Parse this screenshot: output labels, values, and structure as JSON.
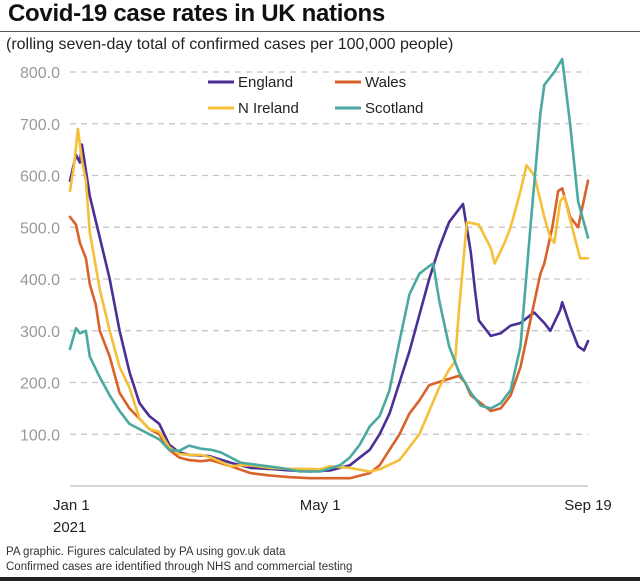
{
  "chart_data": {
    "type": "line",
    "title": "Covid-19 case rates in UK nations",
    "subtitle": "(rolling seven-day total of confirmed cases per 100,000 people)",
    "xlabel": "",
    "ylabel": "",
    "x_unit": "days since Jan 1 2021",
    "xlim": [
      0,
      261
    ],
    "ylim": [
      0,
      820
    ],
    "grid": true,
    "legend_position": "top-center",
    "y_ticks": [
      100,
      200,
      300,
      400,
      500,
      600,
      700,
      800
    ],
    "y_tick_labels": [
      "100.0",
      "200.0",
      "300.0",
      "400.0",
      "500.0",
      "600.0",
      "700.0",
      "800.0"
    ],
    "x_ticks": [
      0,
      120,
      261
    ],
    "x_tick_labels": [
      [
        "Jan 1",
        "2021"
      ],
      [
        "May 1"
      ],
      [
        "Sep 19"
      ]
    ],
    "series": [
      {
        "name": "England",
        "color": "#4b2e96",
        "points": [
          [
            0,
            590
          ],
          [
            3,
            640
          ],
          [
            5,
            625
          ],
          [
            6,
            660
          ],
          [
            10,
            560
          ],
          [
            15,
            480
          ],
          [
            20,
            400
          ],
          [
            25,
            300
          ],
          [
            30,
            220
          ],
          [
            35,
            160
          ],
          [
            40,
            135
          ],
          [
            45,
            120
          ],
          [
            50,
            80
          ],
          [
            55,
            65
          ],
          [
            60,
            60
          ],
          [
            70,
            58
          ],
          [
            81,
            45
          ],
          [
            91,
            35
          ],
          [
            101,
            33
          ],
          [
            111,
            30
          ],
          [
            121,
            28
          ],
          [
            131,
            30
          ],
          [
            141,
            40
          ],
          [
            151,
            70
          ],
          [
            156,
            100
          ],
          [
            161,
            140
          ],
          [
            166,
            200
          ],
          [
            171,
            260
          ],
          [
            176,
            330
          ],
          [
            181,
            400
          ],
          [
            186,
            460
          ],
          [
            191,
            510
          ],
          [
            198,
            545
          ],
          [
            202,
            450
          ],
          [
            204,
            380
          ],
          [
            206,
            320
          ],
          [
            212,
            290
          ],
          [
            217,
            295
          ],
          [
            222,
            310
          ],
          [
            227,
            315
          ],
          [
            232,
            330
          ],
          [
            234,
            335
          ],
          [
            239,
            315
          ],
          [
            242,
            300
          ],
          [
            247,
            340
          ],
          [
            248,
            355
          ],
          [
            252,
            310
          ],
          [
            256,
            270
          ],
          [
            259,
            262
          ],
          [
            261,
            280
          ]
        ]
      },
      {
        "name": "Wales",
        "color": "#d9622b",
        "points": [
          [
            0,
            520
          ],
          [
            3,
            505
          ],
          [
            5,
            470
          ],
          [
            8,
            440
          ],
          [
            10,
            390
          ],
          [
            13,
            350
          ],
          [
            15,
            300
          ],
          [
            20,
            250
          ],
          [
            25,
            180
          ],
          [
            30,
            150
          ],
          [
            35,
            130
          ],
          [
            40,
            110
          ],
          [
            45,
            100
          ],
          [
            50,
            70
          ],
          [
            55,
            55
          ],
          [
            60,
            50
          ],
          [
            66,
            48
          ],
          [
            71,
            50
          ],
          [
            81,
            38
          ],
          [
            91,
            25
          ],
          [
            101,
            20
          ],
          [
            111,
            17
          ],
          [
            121,
            15
          ],
          [
            131,
            15
          ],
          [
            141,
            15
          ],
          [
            151,
            25
          ],
          [
            156,
            40
          ],
          [
            161,
            70
          ],
          [
            166,
            100
          ],
          [
            171,
            140
          ],
          [
            176,
            165
          ],
          [
            181,
            195
          ],
          [
            196,
            213
          ],
          [
            199,
            200
          ],
          [
            202,
            175
          ],
          [
            207,
            160
          ],
          [
            212,
            145
          ],
          [
            217,
            150
          ],
          [
            222,
            175
          ],
          [
            227,
            230
          ],
          [
            232,
            320
          ],
          [
            237,
            410
          ],
          [
            239,
            430
          ],
          [
            243,
            500
          ],
          [
            246,
            570
          ],
          [
            248,
            575
          ],
          [
            252,
            520
          ],
          [
            256,
            500
          ],
          [
            261,
            590
          ]
        ]
      },
      {
        "name": "N Ireland",
        "color": "#f5bf3a",
        "points": [
          [
            0,
            570
          ],
          [
            2,
            620
          ],
          [
            4,
            690
          ],
          [
            6,
            630
          ],
          [
            8,
            590
          ],
          [
            10,
            490
          ],
          [
            15,
            380
          ],
          [
            20,
            300
          ],
          [
            25,
            230
          ],
          [
            30,
            190
          ],
          [
            35,
            130
          ],
          [
            40,
            110
          ],
          [
            45,
            105
          ],
          [
            50,
            75
          ],
          [
            55,
            62
          ],
          [
            60,
            60
          ],
          [
            66,
            60
          ],
          [
            71,
            55
          ],
          [
            81,
            38
          ],
          [
            86,
            40
          ],
          [
            91,
            40
          ],
          [
            101,
            35
          ],
          [
            111,
            33
          ],
          [
            121,
            33
          ],
          [
            126,
            32
          ],
          [
            131,
            38
          ],
          [
            141,
            35
          ],
          [
            151,
            28
          ],
          [
            156,
            32
          ],
          [
            166,
            50
          ],
          [
            176,
            100
          ],
          [
            186,
            190
          ],
          [
            191,
            225
          ],
          [
            194,
            240
          ],
          [
            196,
            340
          ],
          [
            200,
            510
          ],
          [
            206,
            505
          ],
          [
            212,
            460
          ],
          [
            214,
            430
          ],
          [
            219,
            470
          ],
          [
            222,
            500
          ],
          [
            227,
            570
          ],
          [
            230,
            620
          ],
          [
            234,
            600
          ],
          [
            239,
            520
          ],
          [
            242,
            480
          ],
          [
            244,
            470
          ],
          [
            247,
            550
          ],
          [
            249,
            560
          ],
          [
            253,
            500
          ],
          [
            257,
            440
          ],
          [
            261,
            440
          ]
        ]
      },
      {
        "name": "Scotland",
        "color": "#4aa9a0",
        "points": [
          [
            0,
            265
          ],
          [
            3,
            305
          ],
          [
            5,
            295
          ],
          [
            8,
            300
          ],
          [
            10,
            250
          ],
          [
            15,
            210
          ],
          [
            20,
            175
          ],
          [
            25,
            145
          ],
          [
            30,
            120
          ],
          [
            35,
            110
          ],
          [
            40,
            100
          ],
          [
            45,
            90
          ],
          [
            50,
            70
          ],
          [
            55,
            68
          ],
          [
            60,
            78
          ],
          [
            66,
            72
          ],
          [
            71,
            70
          ],
          [
            76,
            65
          ],
          [
            86,
            45
          ],
          [
            96,
            40
          ],
          [
            106,
            35
          ],
          [
            116,
            28
          ],
          [
            126,
            28
          ],
          [
            136,
            40
          ],
          [
            141,
            55
          ],
          [
            146,
            80
          ],
          [
            151,
            115
          ],
          [
            156,
            135
          ],
          [
            161,
            185
          ],
          [
            166,
            280
          ],
          [
            171,
            370
          ],
          [
            176,
            410
          ],
          [
            181,
            425
          ],
          [
            183,
            430
          ],
          [
            186,
            360
          ],
          [
            191,
            270
          ],
          [
            196,
            220
          ],
          [
            202,
            180
          ],
          [
            207,
            155
          ],
          [
            212,
            150
          ],
          [
            217,
            160
          ],
          [
            222,
            185
          ],
          [
            227,
            270
          ],
          [
            232,
            500
          ],
          [
            237,
            720
          ],
          [
            239,
            775
          ],
          [
            244,
            800
          ],
          [
            248,
            825
          ],
          [
            252,
            700
          ],
          [
            256,
            550
          ],
          [
            261,
            480
          ]
        ]
      }
    ],
    "footnotes": [
      "PA graphic. Figures calculated by PA using gov.uk data",
      "Confirmed cases are identified through NHS and commercial testing"
    ]
  }
}
